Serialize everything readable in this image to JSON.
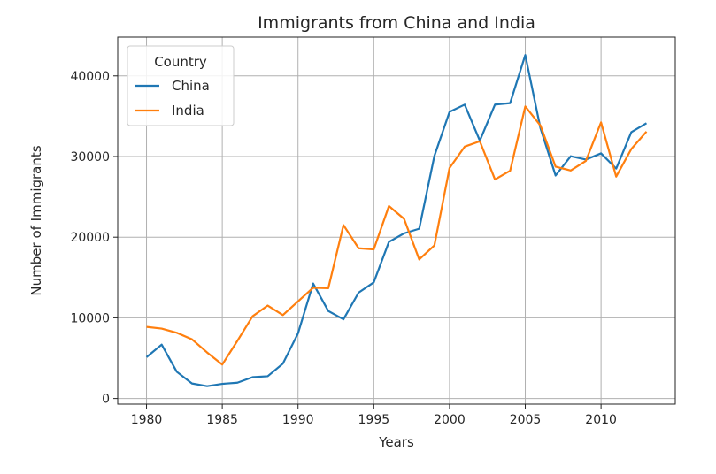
{
  "chart_data": {
    "type": "line",
    "title": "Immigrants from China and India",
    "xlabel": "Years",
    "ylabel": "Number of Immigrants",
    "xlim": [
      1978.1,
      2014.9
    ],
    "ylim": [
      -700,
      44800
    ],
    "xticks": [
      1980,
      1985,
      1990,
      1995,
      2000,
      2005,
      2010
    ],
    "yticks": [
      0,
      10000,
      20000,
      30000,
      40000
    ],
    "grid": true,
    "legend": {
      "title": "Country",
      "position": "top-left"
    },
    "x": [
      1980,
      1981,
      1982,
      1983,
      1984,
      1985,
      1986,
      1987,
      1988,
      1989,
      1990,
      1991,
      1992,
      1993,
      1994,
      1995,
      1996,
      1997,
      1998,
      1999,
      2000,
      2001,
      2002,
      2003,
      2004,
      2005,
      2006,
      2007,
      2008,
      2009,
      2010,
      2011,
      2012,
      2013
    ],
    "series": [
      {
        "name": "China",
        "color": "#1f77b4",
        "values": [
          5123,
          6682,
          3308,
          1863,
          1527,
          1816,
          1960,
          2643,
          2758,
          4323,
          8076,
          14255,
          10846,
          9817,
          13128,
          14398,
          19415,
          20475,
          21049,
          30069,
          35529,
          36434,
          31961,
          36439,
          36619,
          42584,
          33518,
          27642,
          30037,
          29622,
          30391,
          28502,
          33024,
          34129
        ]
      },
      {
        "name": "India",
        "color": "#ff7f0e",
        "values": [
          8880,
          8670,
          8147,
          7338,
          5704,
          4211,
          7150,
          10189,
          11522,
          10343,
          12041,
          13734,
          13673,
          21496,
          18620,
          18489,
          23859,
          22268,
          17241,
          18974,
          28572,
          31223,
          31889,
          27155,
          28235,
          36210,
          33848,
          28742,
          28261,
          29456,
          34235,
          27509,
          30933,
          33087
        ]
      }
    ]
  }
}
